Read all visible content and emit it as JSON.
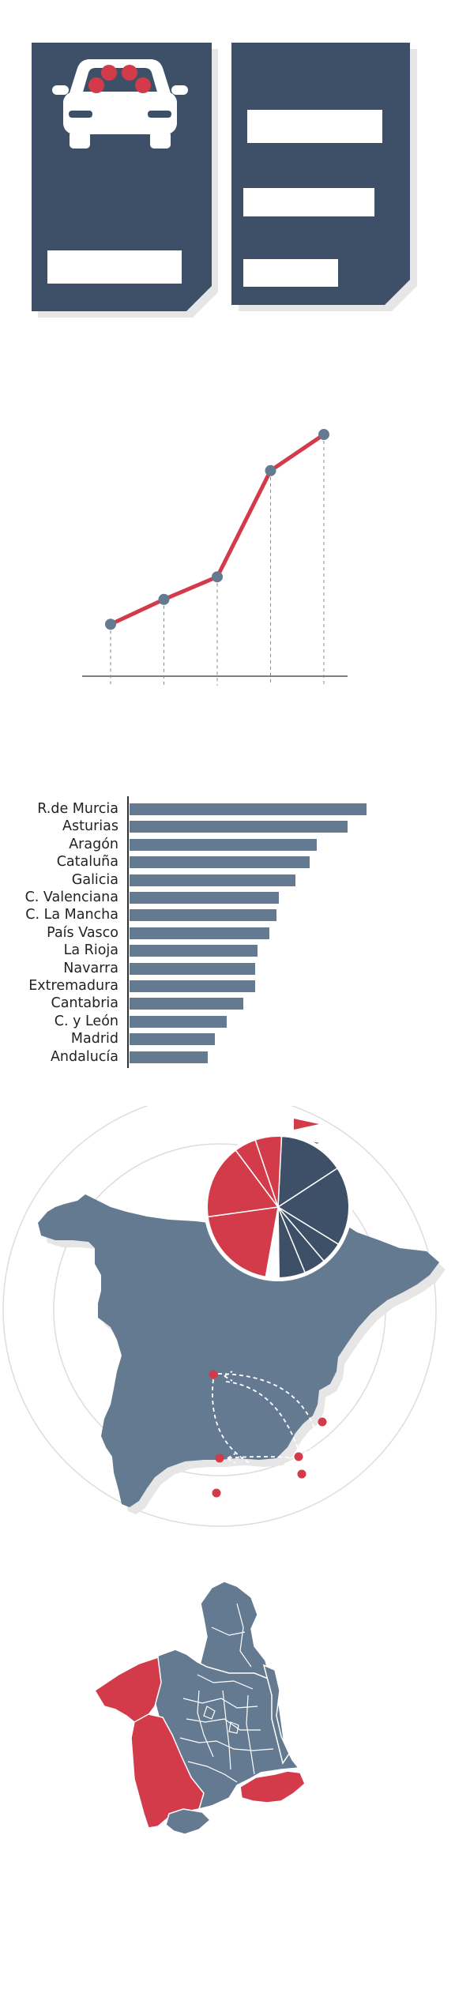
{
  "colors": {
    "navy": "#3d5068",
    "slate": "#647a91",
    "red": "#d33b4a",
    "shadow": "#e6e6e6",
    "white": "#ffffff",
    "text": "#222222",
    "grid": "#dddddd"
  },
  "icons": {
    "car": "car-icon",
    "document": "document-icon"
  },
  "line_chart": {
    "type": "line",
    "x": [
      1,
      2,
      3,
      4,
      5
    ],
    "values": [
      9,
      20,
      30,
      77,
      93
    ],
    "ylim": [
      0,
      100
    ],
    "xlabel": "",
    "ylabel": ""
  },
  "chart_data": {
    "type": "bar",
    "orientation": "horizontal",
    "categories": [
      "R.de Murcia",
      "Asturias",
      "Aragón",
      "Cataluña",
      "Galicia",
      "C. Valenciana",
      "C. La Mancha",
      "País Vasco",
      "La Rioja",
      "Navarra",
      "Extremadura",
      "Cantabria",
      "C. y León",
      "Madrid",
      "Andalucía"
    ],
    "values": [
      100,
      92,
      79,
      76,
      70,
      63,
      62,
      59,
      54,
      53,
      53,
      48,
      41,
      36,
      33
    ],
    "xlim": [
      0,
      100
    ],
    "grid": false,
    "legend": "none"
  },
  "pie_chart": {
    "type": "pie",
    "slices": [
      {
        "value": 15,
        "color": "#3d5068"
      },
      {
        "value": 18,
        "color": "#3d5068"
      },
      {
        "value": 5,
        "color": "#3d5068"
      },
      {
        "value": 5,
        "color": "#3d5068"
      },
      {
        "value": 6,
        "color": "#3d5068"
      },
      {
        "value": 3,
        "color": "#ffffff"
      },
      {
        "value": 20,
        "color": "#d33b4a"
      },
      {
        "value": 17,
        "color": "#d33b4a"
      },
      {
        "value": 5,
        "color": "#d33b4a"
      },
      {
        "value": 6,
        "color": "#d33b4a"
      }
    ]
  },
  "legend_flags": [
    {
      "color": "#d33b4a"
    },
    {
      "color": "#3d5068"
    }
  ]
}
